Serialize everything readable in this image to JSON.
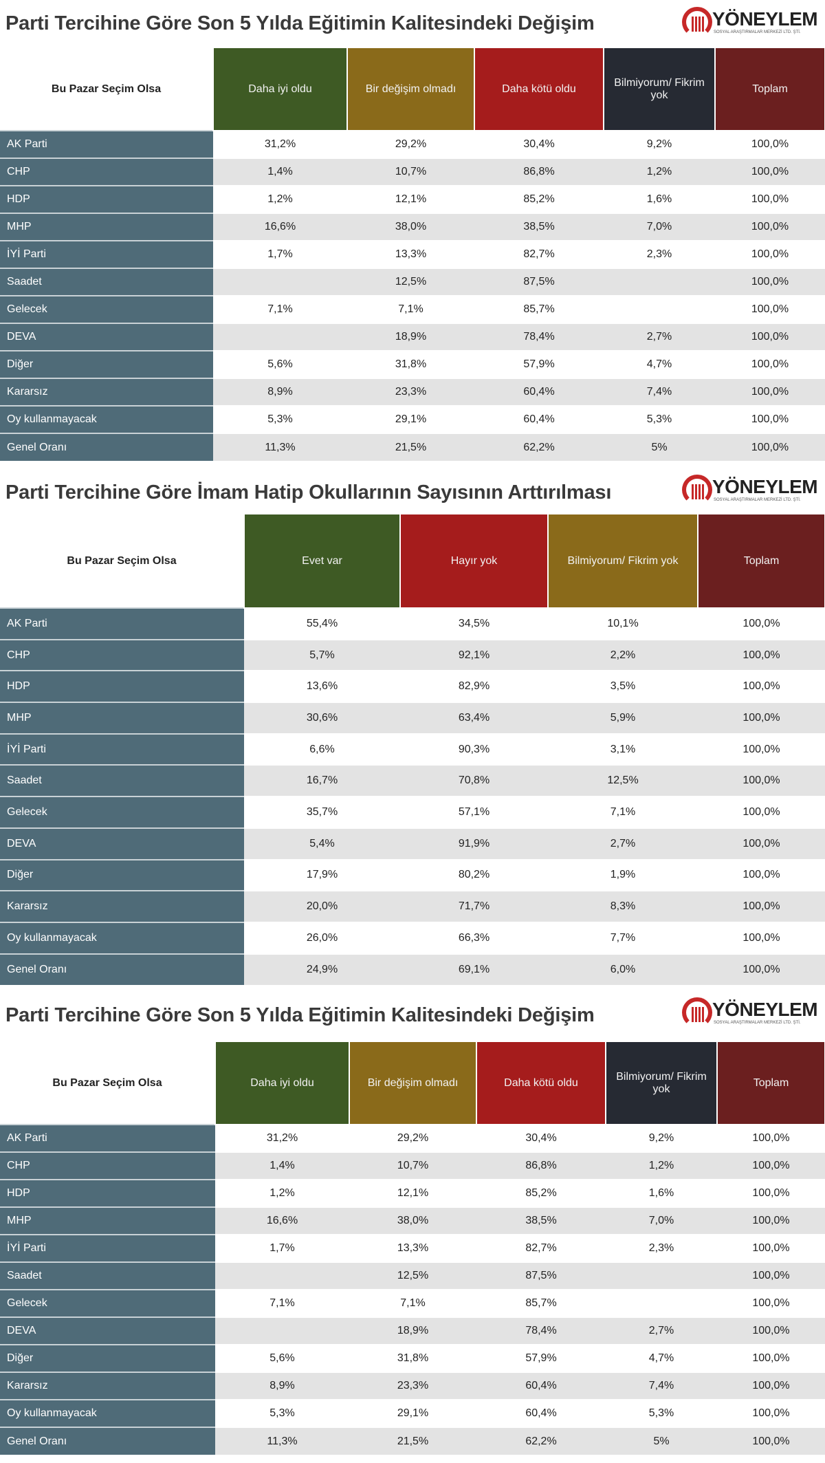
{
  "logo": {
    "name": "YÖNEYLEM",
    "subtitle": "SOSYAL ARAŞTIRMALAR MERKEZİ LTD. ŞTİ."
  },
  "colors": {
    "green": "#3e5a24",
    "gold": "#8a6a1a",
    "red": "#a51c1c",
    "navy": "#262a33",
    "maroon": "#6b1f1f",
    "label_bg": "#4f6b78"
  },
  "tables": [
    {
      "title": "Parti Tercihine Göre Son 5 Yılda Eğitimin Kalitesindeki Değişim",
      "row_header": "Bu Pazar Seçim Olsa",
      "columns": [
        {
          "label": "Daha iyi oldu",
          "color": "#3e5a24"
        },
        {
          "label": "Bir değişim olmadı",
          "color": "#8a6a1a"
        },
        {
          "label": "Daha kötü oldu",
          "color": "#a51c1c"
        },
        {
          "label": "Bilmiyorum/ Fikrim yok",
          "color": "#262a33"
        },
        {
          "label": "Toplam",
          "color": "#6b1f1f"
        }
      ],
      "rows": [
        {
          "party": "AK Parti",
          "values": [
            "31,2%",
            "29,2%",
            "30,4%",
            "9,2%",
            "100,0%"
          ]
        },
        {
          "party": "CHP",
          "values": [
            "1,4%",
            "10,7%",
            "86,8%",
            "1,2%",
            "100,0%"
          ]
        },
        {
          "party": "HDP",
          "values": [
            "1,2%",
            "12,1%",
            "85,2%",
            "1,6%",
            "100,0%"
          ]
        },
        {
          "party": "MHP",
          "values": [
            "16,6%",
            "38,0%",
            "38,5%",
            "7,0%",
            "100,0%"
          ]
        },
        {
          "party": "İYİ Parti",
          "values": [
            "1,7%",
            "13,3%",
            "82,7%",
            "2,3%",
            "100,0%"
          ]
        },
        {
          "party": "Saadet",
          "values": [
            "",
            "12,5%",
            "87,5%",
            "",
            "100,0%"
          ]
        },
        {
          "party": "Gelecek",
          "values": [
            "7,1%",
            "7,1%",
            "85,7%",
            "",
            "100,0%"
          ]
        },
        {
          "party": "DEVA",
          "values": [
            "",
            "18,9%",
            "78,4%",
            "2,7%",
            "100,0%"
          ]
        },
        {
          "party": "Diğer",
          "values": [
            "5,6%",
            "31,8%",
            "57,9%",
            "4,7%",
            "100,0%"
          ]
        },
        {
          "party": "Kararsız",
          "values": [
            "8,9%",
            "23,3%",
            "60,4%",
            "7,4%",
            "100,0%"
          ]
        },
        {
          "party": "Oy kullanmayacak",
          "values": [
            "5,3%",
            "29,1%",
            "60,4%",
            "5,3%",
            "100,0%"
          ]
        },
        {
          "party": "Genel Oranı",
          "values": [
            "11,3%",
            "21,5%",
            "62,2%",
            "5%",
            "100,0%"
          ]
        }
      ]
    },
    {
      "title": "Parti Tercihine Göre İmam Hatip Okullarının Sayısının Arttırılması",
      "row_header": "Bu Pazar Seçim Olsa",
      "columns": [
        {
          "label": "Evet var",
          "color": "#3e5a24"
        },
        {
          "label": "Hayır yok",
          "color": "#a51c1c"
        },
        {
          "label": "Bilmiyorum/ Fikrim yok",
          "color": "#8a6a1a"
        },
        {
          "label": "Toplam",
          "color": "#6b1f1f"
        }
      ],
      "rows": [
        {
          "party": "AK Parti",
          "values": [
            "55,4%",
            "34,5%",
            "10,1%",
            "100,0%"
          ]
        },
        {
          "party": "CHP",
          "values": [
            "5,7%",
            "92,1%",
            "2,2%",
            "100,0%"
          ]
        },
        {
          "party": "HDP",
          "values": [
            "13,6%",
            "82,9%",
            "3,5%",
            "100,0%"
          ]
        },
        {
          "party": "MHP",
          "values": [
            "30,6%",
            "63,4%",
            "5,9%",
            "100,0%"
          ]
        },
        {
          "party": "İYİ Parti",
          "values": [
            "6,6%",
            "90,3%",
            "3,1%",
            "100,0%"
          ]
        },
        {
          "party": "Saadet",
          "values": [
            "16,7%",
            "70,8%",
            "12,5%",
            "100,0%"
          ]
        },
        {
          "party": "Gelecek",
          "values": [
            "35,7%",
            "57,1%",
            "7,1%",
            "100,0%"
          ]
        },
        {
          "party": "DEVA",
          "values": [
            "5,4%",
            "91,9%",
            "2,7%",
            "100,0%"
          ]
        },
        {
          "party": "Diğer",
          "values": [
            "17,9%",
            "80,2%",
            "1,9%",
            "100,0%"
          ]
        },
        {
          "party": "Kararsız",
          "values": [
            "20,0%",
            "71,7%",
            "8,3%",
            "100,0%"
          ]
        },
        {
          "party": "Oy kullanmayacak",
          "values": [
            "26,0%",
            "66,3%",
            "7,7%",
            "100,0%"
          ]
        },
        {
          "party": "Genel Oranı",
          "values": [
            "24,9%",
            "69,1%",
            "6,0%",
            "100,0%"
          ]
        }
      ]
    },
    {
      "title": "Parti Tercihine Göre Son 5 Yılda Eğitimin Kalitesindeki Değişim",
      "row_header": "Bu Pazar Seçim Olsa",
      "columns": [
        {
          "label": "Daha iyi oldu",
          "color": "#3e5a24"
        },
        {
          "label": "Bir değişim olmadı",
          "color": "#8a6a1a"
        },
        {
          "label": "Daha kötü oldu",
          "color": "#a51c1c"
        },
        {
          "label": "Bilmiyorum/ Fikrim yok",
          "color": "#262a33"
        },
        {
          "label": "Toplam",
          "color": "#6b1f1f"
        }
      ],
      "rows": [
        {
          "party": "AK Parti",
          "values": [
            "31,2%",
            "29,2%",
            "30,4%",
            "9,2%",
            "100,0%"
          ]
        },
        {
          "party": "CHP",
          "values": [
            "1,4%",
            "10,7%",
            "86,8%",
            "1,2%",
            "100,0%"
          ]
        },
        {
          "party": "HDP",
          "values": [
            "1,2%",
            "12,1%",
            "85,2%",
            "1,6%",
            "100,0%"
          ]
        },
        {
          "party": "MHP",
          "values": [
            "16,6%",
            "38,0%",
            "38,5%",
            "7,0%",
            "100,0%"
          ]
        },
        {
          "party": "İYİ Parti",
          "values": [
            "1,7%",
            "13,3%",
            "82,7%",
            "2,3%",
            "100,0%"
          ]
        },
        {
          "party": "Saadet",
          "values": [
            "",
            "12,5%",
            "87,5%",
            "",
            "100,0%"
          ]
        },
        {
          "party": "Gelecek",
          "values": [
            "7,1%",
            "7,1%",
            "85,7%",
            "",
            "100,0%"
          ]
        },
        {
          "party": "DEVA",
          "values": [
            "",
            "18,9%",
            "78,4%",
            "2,7%",
            "100,0%"
          ]
        },
        {
          "party": "Diğer",
          "values": [
            "5,6%",
            "31,8%",
            "57,9%",
            "4,7%",
            "100,0%"
          ]
        },
        {
          "party": "Kararsız",
          "values": [
            "8,9%",
            "23,3%",
            "60,4%",
            "7,4%",
            "100,0%"
          ]
        },
        {
          "party": "Oy kullanmayacak",
          "values": [
            "5,3%",
            "29,1%",
            "60,4%",
            "5,3%",
            "100,0%"
          ]
        },
        {
          "party": "Genel Oranı",
          "values": [
            "11,3%",
            "21,5%",
            "62,2%",
            "5%",
            "100,0%"
          ]
        }
      ]
    }
  ]
}
